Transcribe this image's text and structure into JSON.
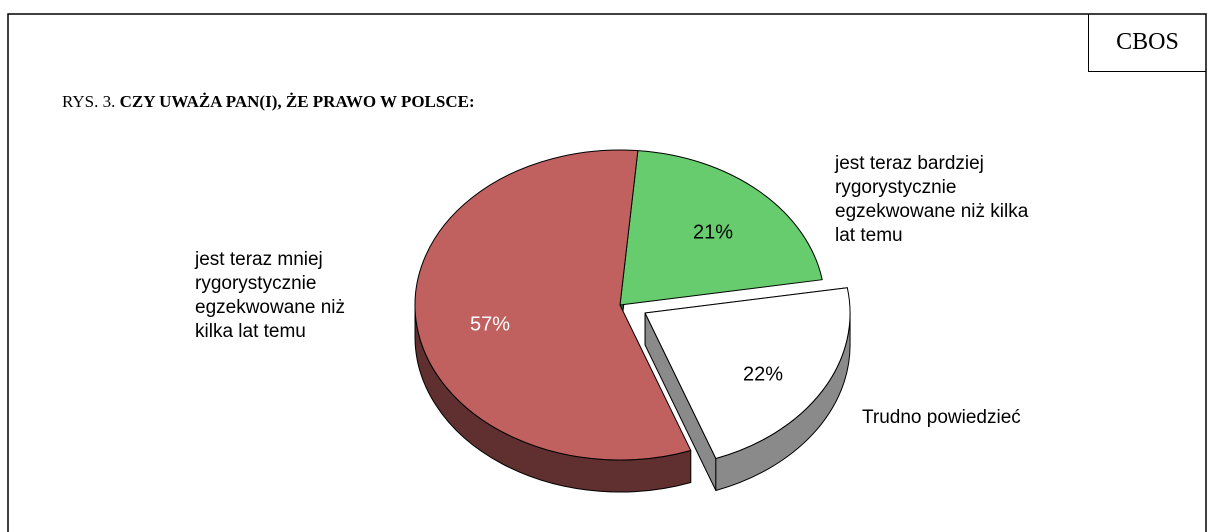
{
  "header": {
    "brand": "CBOS"
  },
  "chart_data": {
    "type": "pie",
    "figure_label": "RYS. 3.",
    "title": "CZY UWAŻA PAN(I), ŻE PRAWO W POLSCE:",
    "categories": [
      "jest teraz bardziej rygorystycznie egzekwowane niż kilka lat temu",
      "Trudno powiedzieć",
      "jest teraz mniej rygorystycznie egzekwowane niż kilka lat temu"
    ],
    "values": [
      21,
      22,
      57
    ],
    "value_labels": [
      "21%",
      "22%",
      "57%"
    ],
    "colors": [
      "#66cc6e",
      "#ffffff",
      "#c0605f"
    ],
    "explode": [
      false,
      true,
      false
    ]
  }
}
